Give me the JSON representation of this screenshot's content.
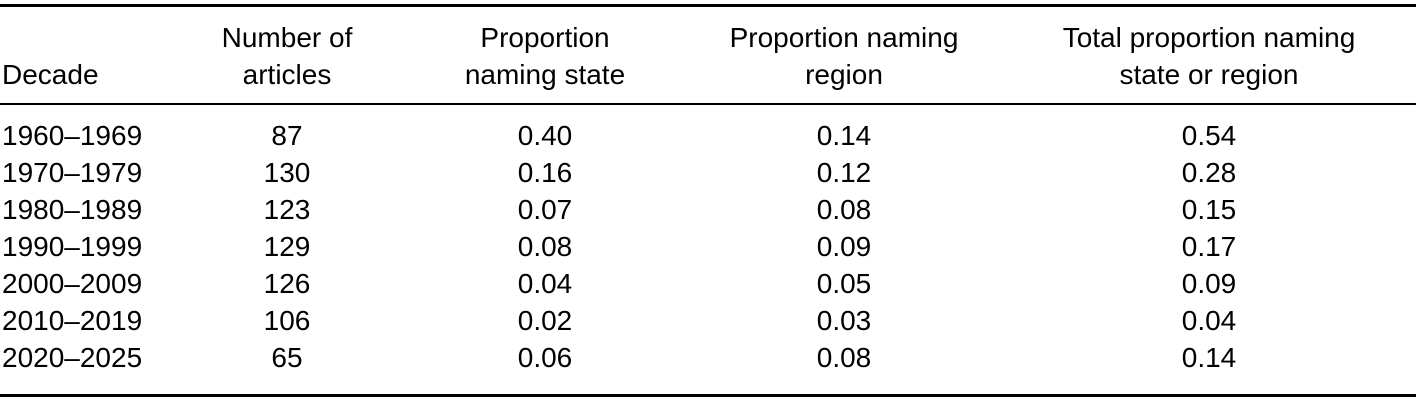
{
  "colors": {
    "text": "#000000",
    "background": "#ffffff",
    "rule": "#000000"
  },
  "table": {
    "columns": [
      {
        "lines": [
          "Decade"
        ]
      },
      {
        "lines": [
          "Number of",
          "articles"
        ]
      },
      {
        "lines": [
          "Proportion",
          "naming state"
        ]
      },
      {
        "lines": [
          "Proportion naming",
          "region"
        ]
      },
      {
        "lines": [
          "Total proportion naming",
          "state or region"
        ]
      }
    ],
    "rows": [
      [
        "1960–1969",
        "87",
        "0.40",
        "0.14",
        "0.54"
      ],
      [
        "1970–1979",
        "130",
        "0.16",
        "0.12",
        "0.28"
      ],
      [
        "1980–1989",
        "123",
        "0.07",
        "0.08",
        "0.15"
      ],
      [
        "1990–1999",
        "129",
        "0.08",
        "0.09",
        "0.17"
      ],
      [
        "2000–2009",
        "126",
        "0.04",
        "0.05",
        "0.09"
      ],
      [
        "2010–2019",
        "106",
        "0.02",
        "0.03",
        "0.04"
      ],
      [
        "2020–2025",
        "65",
        "0.06",
        "0.08",
        "0.14"
      ]
    ]
  },
  "chart_data": {
    "type": "table",
    "columns": [
      "Decade",
      "Number of articles",
      "Proportion naming state",
      "Proportion naming region",
      "Total proportion naming state or region"
    ],
    "rows": [
      [
        "1960–1969",
        87,
        0.4,
        0.14,
        0.54
      ],
      [
        "1970–1979",
        130,
        0.16,
        0.12,
        0.28
      ],
      [
        "1980–1989",
        123,
        0.07,
        0.08,
        0.15
      ],
      [
        "1990–1999",
        129,
        0.08,
        0.09,
        0.17
      ],
      [
        "2000–2009",
        126,
        0.04,
        0.05,
        0.09
      ],
      [
        "2010–2019",
        106,
        0.02,
        0.03,
        0.04
      ],
      [
        "2020–2025",
        65,
        0.06,
        0.08,
        0.14
      ]
    ]
  }
}
